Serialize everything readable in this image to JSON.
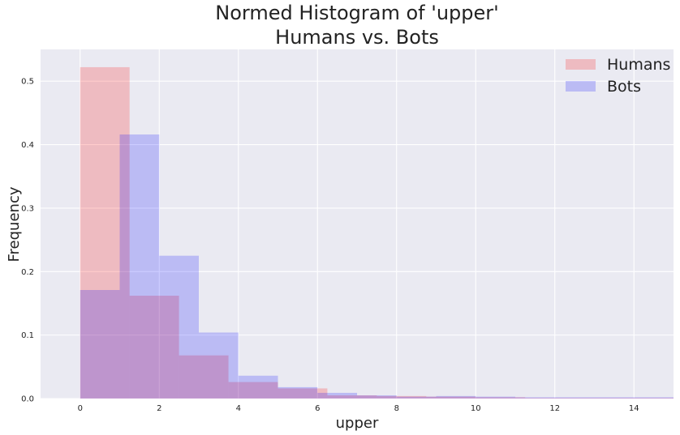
{
  "chart_data": {
    "type": "bar",
    "title_lines": [
      "Normed Histogram of 'upper'",
      "Humans vs. Bots"
    ],
    "xlabel": "upper",
    "ylabel": "Frequency",
    "xlim": [
      -1,
      15
    ],
    "ylim": [
      0,
      0.55
    ],
    "xticks": [
      0,
      2,
      4,
      6,
      8,
      10,
      12,
      14
    ],
    "yticks": [
      0.0,
      0.1,
      0.2,
      0.3,
      0.4,
      0.5
    ],
    "grid": true,
    "legend_position": "top-right",
    "series": [
      {
        "name": "Humans",
        "color": "#ff0000",
        "alpha": 0.2,
        "bins": [
          {
            "x0": 0.0,
            "x1": 1.25,
            "value": 0.522
          },
          {
            "x0": 1.25,
            "x1": 2.5,
            "value": 0.162
          },
          {
            "x0": 2.5,
            "x1": 3.75,
            "value": 0.068
          },
          {
            "x0": 3.75,
            "x1": 5.0,
            "value": 0.026
          },
          {
            "x0": 5.0,
            "x1": 6.25,
            "value": 0.016
          },
          {
            "x0": 6.25,
            "x1": 7.5,
            "value": 0.005
          },
          {
            "x0": 7.5,
            "x1": 8.75,
            "value": 0.004
          },
          {
            "x0": 8.75,
            "x1": 10.0,
            "value": 0.003
          },
          {
            "x0": 10.0,
            "x1": 11.25,
            "value": 0.002
          },
          {
            "x0": 11.25,
            "x1": 12.5,
            "value": 0.001
          },
          {
            "x0": 12.5,
            "x1": 13.75,
            "value": 0.001
          },
          {
            "x0": 13.75,
            "x1": 15.0,
            "value": 0.001
          }
        ]
      },
      {
        "name": "Bots",
        "color": "#0000ff",
        "alpha": 0.2,
        "bins": [
          {
            "x0": 0.0,
            "x1": 1.0,
            "value": 0.171
          },
          {
            "x0": 1.0,
            "x1": 2.0,
            "value": 0.416
          },
          {
            "x0": 2.0,
            "x1": 3.0,
            "value": 0.225
          },
          {
            "x0": 3.0,
            "x1": 4.0,
            "value": 0.104
          },
          {
            "x0": 4.0,
            "x1": 5.0,
            "value": 0.036
          },
          {
            "x0": 5.0,
            "x1": 6.0,
            "value": 0.018
          },
          {
            "x0": 6.0,
            "x1": 7.0,
            "value": 0.009
          },
          {
            "x0": 7.0,
            "x1": 8.0,
            "value": 0.005
          },
          {
            "x0": 8.0,
            "x1": 9.0,
            "value": 0.003
          },
          {
            "x0": 9.0,
            "x1": 10.0,
            "value": 0.004
          },
          {
            "x0": 10.0,
            "x1": 11.0,
            "value": 0.003
          },
          {
            "x0": 11.0,
            "x1": 12.0,
            "value": 0.002
          },
          {
            "x0": 12.0,
            "x1": 13.0,
            "value": 0.002
          },
          {
            "x0": 13.0,
            "x1": 14.0,
            "value": 0.002
          },
          {
            "x0": 14.0,
            "x1": 15.0,
            "value": 0.002
          }
        ]
      }
    ]
  }
}
